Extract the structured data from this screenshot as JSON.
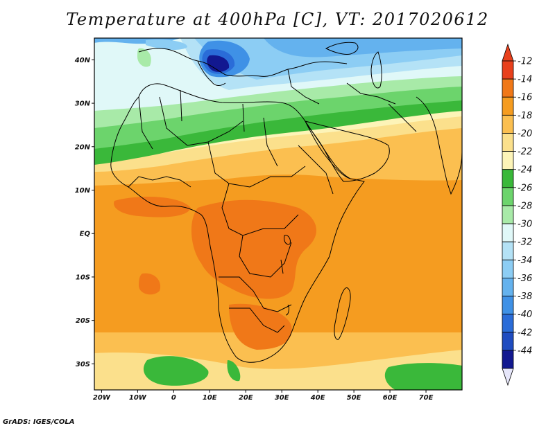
{
  "title": "Temperature at 400hPa [C], VT: 2017020612",
  "credit": "GrADS: IGES/COLA",
  "map": {
    "lon_range": [
      -22,
      80
    ],
    "lat_range": [
      -36,
      45
    ],
    "lat_ticks": [
      {
        "value": 40,
        "label": "40N"
      },
      {
        "value": 30,
        "label": "30N"
      },
      {
        "value": 20,
        "label": "20N"
      },
      {
        "value": 10,
        "label": "10N"
      },
      {
        "value": 0,
        "label": "EQ"
      },
      {
        "value": -10,
        "label": "10S"
      },
      {
        "value": -20,
        "label": "20S"
      },
      {
        "value": -30,
        "label": "30S"
      }
    ],
    "lon_ticks": [
      {
        "value": -20,
        "label": "20W"
      },
      {
        "value": -10,
        "label": "10W"
      },
      {
        "value": 0,
        "label": "0"
      },
      {
        "value": 10,
        "label": "10E"
      },
      {
        "value": 20,
        "label": "20E"
      },
      {
        "value": 30,
        "label": "30E"
      },
      {
        "value": 40,
        "label": "40E"
      },
      {
        "value": 50,
        "label": "50E"
      },
      {
        "value": 60,
        "label": "60E"
      },
      {
        "value": 70,
        "label": "70E"
      }
    ]
  },
  "colorbar": {
    "levels": [
      "-12",
      "-14",
      "-16",
      "-18",
      "-20",
      "-22",
      "-24",
      "-26",
      "-28",
      "-30",
      "-32",
      "-34",
      "-36",
      "-38",
      "-40",
      "-42",
      "-44"
    ],
    "colors": [
      "#e8401c",
      "#f07818",
      "#f59c20",
      "#fbbf50",
      "#fbe08c",
      "#fdf4b8",
      "#3ab83a",
      "#6cd46c",
      "#a8eaa8",
      "#e0f8f8",
      "#b4e2f6",
      "#8ccdf4",
      "#64b2ee",
      "#3f91e6",
      "#2a6cd8",
      "#1f4cc0",
      "#121890"
    ],
    "top_arrow_color": "#e8401c",
    "bottom_arrow_color": "#e6e6fa"
  }
}
